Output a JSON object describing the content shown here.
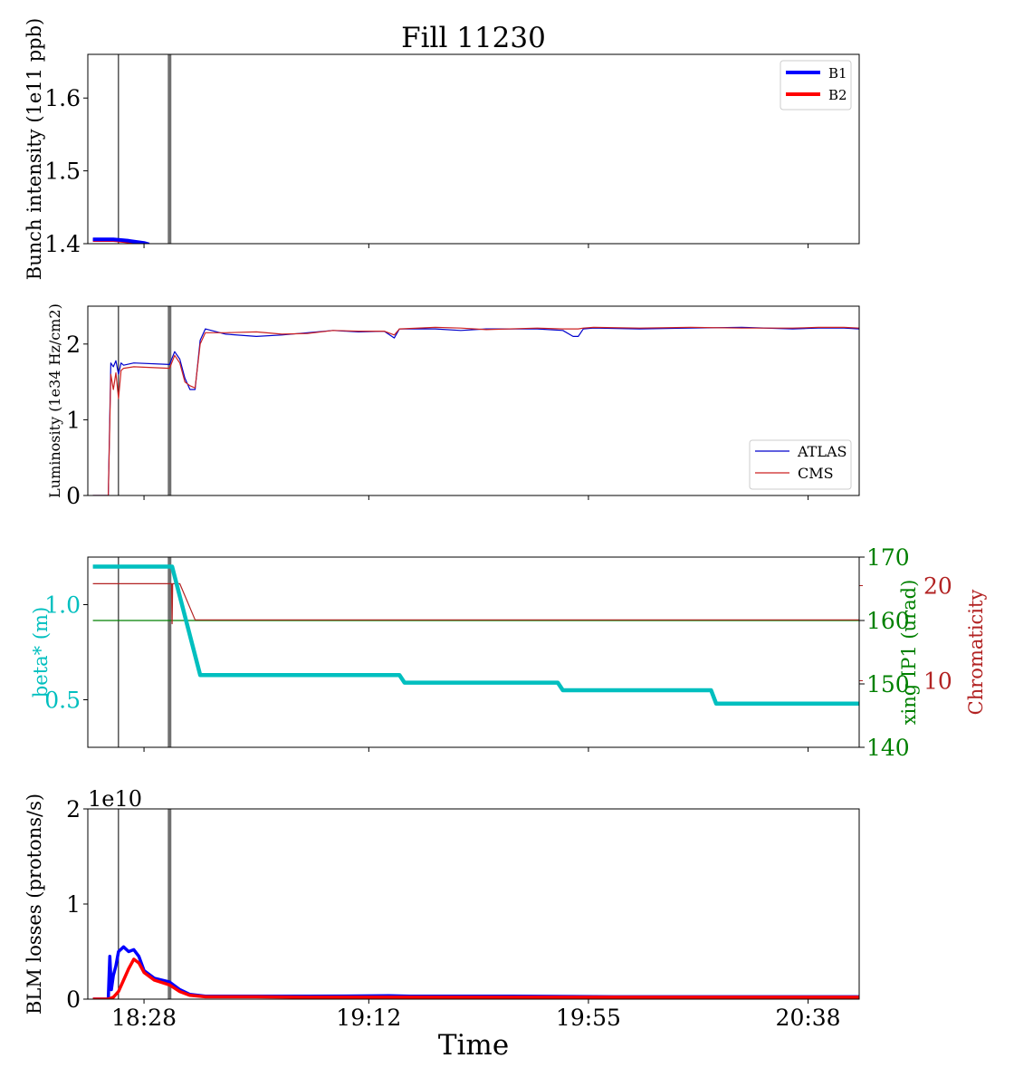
{
  "title": "Fill 11230",
  "xlabel": "Time",
  "x_ticks": [
    "18:28",
    "19:12",
    "19:55",
    "20:38"
  ],
  "colors": {
    "b1": "#0000ff",
    "b2": "#ff0000",
    "atlas": "#0000cc",
    "cms": "#cc2222",
    "beta": "#00bfbf",
    "xing": "#008000",
    "chroma": "#b22222",
    "marker_thin": "#000000",
    "marker_thick": "#707070"
  },
  "markers": [
    "18:23",
    "18:33"
  ],
  "chart_data": [
    {
      "type": "line",
      "ylabel": "Bunch intensity (1e11 ppb)",
      "ylim": [
        1.4,
        1.66
      ],
      "y_ticks": [
        "1.4",
        "1.5",
        "1.6"
      ],
      "legend": {
        "placement": "top-right",
        "entries": [
          "B1",
          "B2"
        ]
      },
      "series": [
        {
          "name": "B1",
          "x": [
            "18:18",
            "18:22",
            "18:25",
            "18:28",
            "18:29"
          ],
          "y": [
            1.406,
            1.406,
            1.404,
            1.401,
            1.399
          ]
        },
        {
          "name": "B2",
          "x": [
            "18:18",
            "18:22",
            "18:25",
            "18:28",
            "18:29"
          ],
          "y": [
            1.405,
            1.405,
            1.403,
            1.4,
            1.398
          ]
        }
      ]
    },
    {
      "type": "line",
      "ylabel": "Luminosity (1e34 Hz/cm2)",
      "ylim": [
        0,
        2.5
      ],
      "y_ticks": [
        "0",
        "1",
        "2"
      ],
      "legend": {
        "placement": "bottom-right",
        "entries": [
          "ATLAS",
          "CMS"
        ]
      },
      "series": [
        {
          "name": "ATLAS",
          "x": [
            "18:18",
            "18:21",
            "18:21.5",
            "18:22",
            "18:22.5",
            "18:23",
            "18:23.5",
            "18:24",
            "18:26",
            "18:33",
            "18:34",
            "18:35",
            "18:36",
            "18:37",
            "18:38",
            "18:39",
            "18:40",
            "18:44",
            "18:50",
            "18:55",
            "19:00",
            "19:05",
            "19:10",
            "19:15",
            "19:17",
            "19:18",
            "19:25",
            "19:30",
            "19:35",
            "19:45",
            "19:50",
            "19:52",
            "19:53",
            "19:54",
            "19:56",
            "20:05",
            "20:15",
            "20:25",
            "20:35",
            "20:40",
            "20:45",
            "20:48"
          ],
          "y": [
            0,
            0,
            1.75,
            1.7,
            1.78,
            1.6,
            1.75,
            1.72,
            1.75,
            1.73,
            1.9,
            1.8,
            1.55,
            1.4,
            1.4,
            2.05,
            2.2,
            2.13,
            2.1,
            2.12,
            2.15,
            2.18,
            2.16,
            2.17,
            2.08,
            2.2,
            2.2,
            2.18,
            2.2,
            2.2,
            2.18,
            2.1,
            2.1,
            2.2,
            2.21,
            2.2,
            2.21,
            2.22,
            2.2,
            2.21,
            2.21,
            2.2
          ]
        },
        {
          "name": "CMS",
          "x": [
            "18:18",
            "18:21",
            "18:21.5",
            "18:22",
            "18:22.5",
            "18:23",
            "18:23.5",
            "18:24",
            "18:26",
            "18:33",
            "18:34",
            "18:35",
            "18:36",
            "18:37",
            "18:38",
            "18:39",
            "18:40",
            "18:44",
            "18:50",
            "18:55",
            "19:00",
            "19:05",
            "19:10",
            "19:15",
            "19:17",
            "19:18",
            "19:25",
            "19:30",
            "19:35",
            "19:45",
            "19:50",
            "19:52",
            "19:53",
            "19:54",
            "19:56",
            "20:05",
            "20:15",
            "20:25",
            "20:35",
            "20:40",
            "20:45",
            "20:48"
          ],
          "y": [
            0,
            0,
            1.6,
            1.4,
            1.62,
            1.28,
            1.65,
            1.68,
            1.7,
            1.68,
            1.85,
            1.75,
            1.5,
            1.45,
            1.42,
            2.0,
            2.15,
            2.15,
            2.16,
            2.13,
            2.14,
            2.18,
            2.17,
            2.17,
            2.12,
            2.2,
            2.22,
            2.21,
            2.19,
            2.21,
            2.2,
            2.2,
            2.2,
            2.21,
            2.22,
            2.21,
            2.22,
            2.21,
            2.21,
            2.22,
            2.22,
            2.21
          ]
        }
      ]
    },
    {
      "type": "line",
      "ylabel": "beta* (m)",
      "ylim": [
        0.25,
        1.25
      ],
      "y_ticks": [
        "0.5",
        "1.0"
      ],
      "secondary_axes": [
        {
          "ylabel": "xing IP1 (urad)",
          "ylim": [
            140,
            170
          ],
          "y_ticks": [
            "140",
            "150",
            "160",
            "170"
          ]
        },
        {
          "ylabel": "Chromaticity",
          "ylim": [
            3,
            23
          ],
          "y_ticks": [
            "10",
            "20"
          ]
        }
      ],
      "series": [
        {
          "axis": "beta",
          "x": [
            "18:18",
            "18:33.5",
            "18:39",
            "19:18",
            "19:19",
            "19:49",
            "19:50",
            "20:19",
            "20:20",
            "20:48"
          ],
          "y": [
            1.2,
            1.2,
            0.63,
            0.63,
            0.59,
            0.59,
            0.55,
            0.55,
            0.48,
            0.48
          ]
        },
        {
          "axis": "xing",
          "x": [
            "18:18",
            "20:48"
          ],
          "y": [
            160,
            160
          ]
        },
        {
          "axis": "chroma",
          "x": [
            "18:18",
            "18:33.4",
            "18:33.5",
            "18:33.6",
            "18:35",
            "18:38",
            "20:48"
          ],
          "y": [
            20.2,
            20.2,
            16,
            20.2,
            20.2,
            16.4,
            16.4
          ]
        }
      ]
    },
    {
      "type": "line",
      "ylabel": "BLM losses (protons/s)",
      "y_offset_label": "1e10",
      "ylim": [
        0,
        2
      ],
      "y_ticks": [
        "0",
        "1",
        "2"
      ],
      "series": [
        {
          "name": "B1",
          "x": [
            "18:18",
            "18:21",
            "18:21.3",
            "18:21.6",
            "18:22",
            "18:22.5",
            "18:23",
            "18:24",
            "18:25",
            "18:26",
            "18:27",
            "18:28",
            "18:30",
            "18:33",
            "18:35",
            "18:37",
            "18:40",
            "18:50",
            "19:00",
            "19:16",
            "19:20",
            "19:40",
            "20:00",
            "20:20",
            "20:48"
          ],
          "y": [
            0,
            0,
            0.45,
            0.1,
            0.25,
            0.35,
            0.5,
            0.55,
            0.5,
            0.52,
            0.45,
            0.3,
            0.22,
            0.18,
            0.1,
            0.05,
            0.03,
            0.03,
            0.03,
            0.035,
            0.03,
            0.03,
            0.025,
            0.025,
            0.025
          ]
        },
        {
          "name": "B2",
          "x": [
            "18:18",
            "18:21",
            "18:22",
            "18:23",
            "18:24",
            "18:25",
            "18:26",
            "18:27",
            "18:28",
            "18:30",
            "18:33",
            "18:35",
            "18:37",
            "18:40",
            "18:50",
            "19:00",
            "19:20",
            "19:40",
            "20:00",
            "20:20",
            "20:48"
          ],
          "y": [
            0,
            0,
            0.02,
            0.08,
            0.2,
            0.32,
            0.42,
            0.38,
            0.28,
            0.2,
            0.15,
            0.08,
            0.04,
            0.025,
            0.025,
            0.02,
            0.02,
            0.02,
            0.02,
            0.02,
            0.02
          ]
        }
      ]
    }
  ]
}
